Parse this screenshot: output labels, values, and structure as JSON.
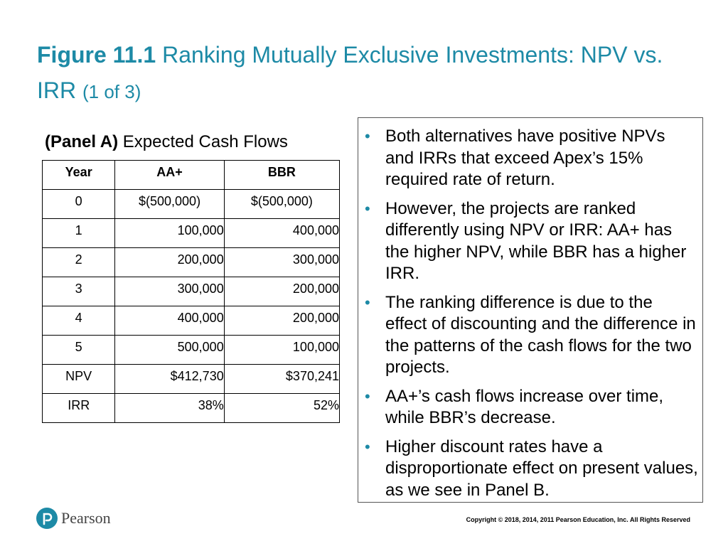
{
  "title": {
    "figure": "Figure 11.1",
    "text": "Ranking Mutually Exclusive Investments: NPV vs. IRR",
    "part": "(1 of 3)"
  },
  "panel": {
    "label_bold": "(Panel A)",
    "label_rest": "Expected Cash Flows"
  },
  "table": {
    "headers": [
      "Year",
      "AA+",
      "BBR"
    ],
    "rows": [
      [
        "0",
        "$(500,000)",
        "$(500,000)"
      ],
      [
        "1",
        "100,000",
        "400,000"
      ],
      [
        "2",
        "200,000",
        "300,000"
      ],
      [
        "3",
        "300,000",
        "200,000"
      ],
      [
        "4",
        "400,000",
        "200,000"
      ],
      [
        "5",
        "500,000",
        "100,000"
      ],
      [
        "NPV",
        "$412,730",
        "$370,241"
      ],
      [
        "IRR",
        "38%",
        "52%"
      ]
    ]
  },
  "bullets": [
    "Both alternatives have positive NPVs and IRRs that exceed Apex’s 15% required rate of return.",
    "However, the projects are ranked differently using NPV or IRR: AA+ has the higher NPV, while BBR has a higher IRR.",
    "The ranking difference is due to the effect of discounting and the difference in the patterns of the cash flows for the two projects.",
    "AA+’s cash flows increase over time, while BBR’s decrease.",
    "Higher discount rates have a disproportionate effect on present values, as we see in Panel B."
  ],
  "footer": {
    "logo_text": "Pearson",
    "copyright": "Copyright © 2018, 2014, 2011 Pearson Education, Inc. All Rights Reserved"
  },
  "colors": {
    "accent": "#1d8aa6"
  }
}
